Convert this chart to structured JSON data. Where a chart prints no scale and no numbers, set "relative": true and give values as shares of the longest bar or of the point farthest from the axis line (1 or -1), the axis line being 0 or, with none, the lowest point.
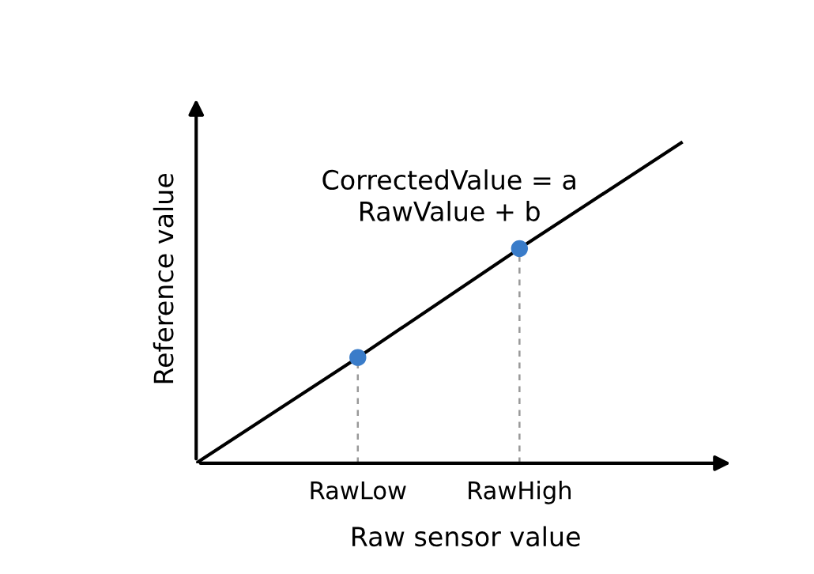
{
  "chart_data": {
    "type": "line",
    "relative": true,
    "xlabel": "Raw sensor value",
    "ylabel": "Reference value",
    "categories": [
      null,
      "RawLow",
      "RawHigh",
      null
    ],
    "series": [
      {
        "color": "#000000",
        "values": [
          0,
          0.33,
          0.67,
          1
        ]
      },
      {
        "type": "scatter",
        "color": "#3a7cc9",
        "marker": "circle",
        "x": [
          "RawLow",
          "RawHigh"
        ],
        "values": [
          0.33,
          0.67
        ]
      }
    ],
    "annotations": [
      "CorrectedValue = a\nRawValue + b"
    ],
    "grid": false,
    "legend": false
  }
}
